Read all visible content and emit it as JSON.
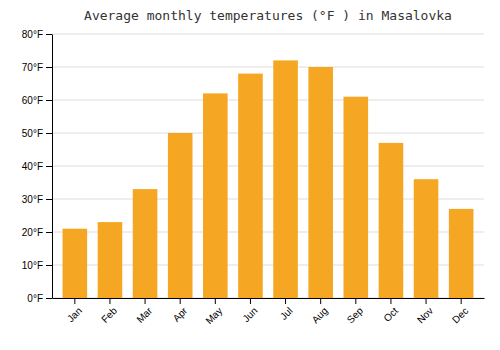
{
  "chart_data": {
    "type": "bar",
    "title": "Average monthly temperatures (°F ) in Masalovka",
    "categories": [
      "Jan",
      "Feb",
      "Mar",
      "Apr",
      "May",
      "Jun",
      "Jul",
      "Aug",
      "Sep",
      "Oct",
      "Nov",
      "Dec"
    ],
    "values": [
      21,
      23,
      33,
      50,
      62,
      68,
      72,
      70,
      61,
      47,
      36,
      27
    ],
    "color": "#F5A623",
    "ylim": [
      0,
      80
    ],
    "yticks": [
      {
        "value": 0,
        "label": "0°F"
      },
      {
        "value": 10,
        "label": "10°F"
      },
      {
        "value": 20,
        "label": "20°F"
      },
      {
        "value": 30,
        "label": "30°F"
      },
      {
        "value": 40,
        "label": "40°F"
      },
      {
        "value": 50,
        "label": "50°F"
      },
      {
        "value": 60,
        "label": "60°F"
      },
      {
        "value": 70,
        "label": "70°F"
      },
      {
        "value": 80,
        "label": "80°F"
      }
    ],
    "grid": true
  }
}
